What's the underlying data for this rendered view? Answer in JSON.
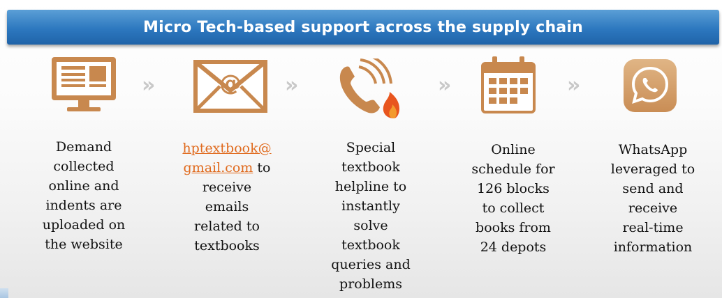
{
  "header": {
    "title": "Micro Tech-based support across the supply chain"
  },
  "colors": {
    "accent": "#c8884e",
    "banner": "#2d78bf",
    "link": "#e06a1d"
  },
  "steps": [
    {
      "icon": "monitor-website-icon",
      "lines": [
        "Demand",
        "collected",
        "online and",
        "indents are",
        "uploaded on",
        "the website"
      ]
    },
    {
      "icon": "email-envelope-icon",
      "link_lines": [
        "hptextbook@",
        "gmail.com"
      ],
      "link_suffix": " to",
      "lines": [
        "receive",
        "emails",
        "related to",
        "textbooks"
      ]
    },
    {
      "icon": "phone-helpline-icon",
      "lines": [
        "Special",
        "textbook",
        "helpline to",
        "instantly",
        "solve",
        "textbook",
        "queries and",
        "problems"
      ]
    },
    {
      "icon": "calendar-schedule-icon",
      "lines": [
        "Online",
        "schedule for",
        "126 blocks",
        "to collect",
        "books from",
        "24 depots"
      ]
    },
    {
      "icon": "whatsapp-icon",
      "lines": [
        "WhatsApp",
        "leveraged to",
        "send and",
        "receive",
        "real-time",
        "information"
      ]
    }
  ],
  "arrow_glyph": "»"
}
